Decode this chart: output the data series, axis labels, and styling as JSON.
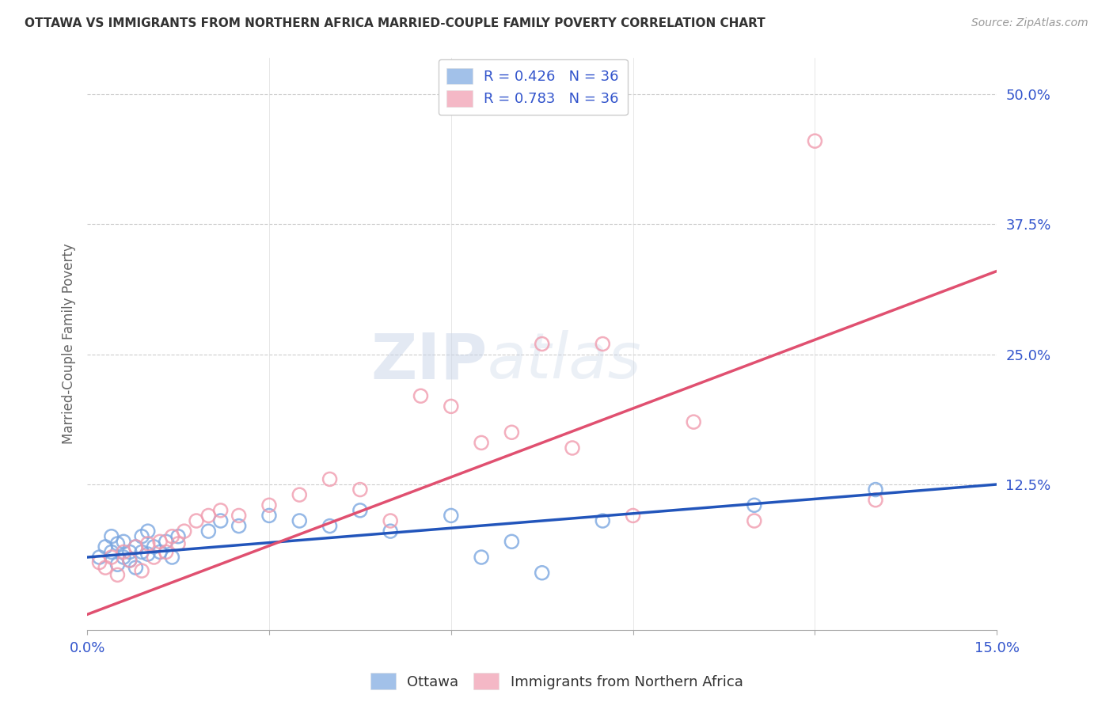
{
  "title": "OTTAWA VS IMMIGRANTS FROM NORTHERN AFRICA MARRIED-COUPLE FAMILY POVERTY CORRELATION CHART",
  "source": "Source: ZipAtlas.com",
  "ylabel": "Married-Couple Family Poverty",
  "ytick_labels": [
    "12.5%",
    "25.0%",
    "37.5%",
    "50.0%"
  ],
  "ytick_values": [
    0.125,
    0.25,
    0.375,
    0.5
  ],
  "xlim": [
    0.0,
    0.15
  ],
  "ylim": [
    -0.015,
    0.535
  ],
  "ottawa_color": "#7ba7e0",
  "immigrants_color": "#f09bae",
  "ottawa_line_color": "#2255bb",
  "immigrants_line_color": "#e05070",
  "R_ottawa": 0.426,
  "N_ottawa": 36,
  "R_immigrants": 0.783,
  "N_immigrants": 36,
  "legend_text_color": "#3355cc",
  "watermark_zip": "ZIP",
  "watermark_atlas": "atlas",
  "background_color": "#ffffff",
  "grid_color": "#cccccc",
  "ottawa_x": [
    0.002,
    0.003,
    0.004,
    0.004,
    0.005,
    0.005,
    0.006,
    0.006,
    0.007,
    0.007,
    0.008,
    0.008,
    0.009,
    0.009,
    0.01,
    0.01,
    0.011,
    0.012,
    0.013,
    0.014,
    0.015,
    0.02,
    0.022,
    0.025,
    0.03,
    0.035,
    0.04,
    0.045,
    0.05,
    0.06,
    0.065,
    0.07,
    0.075,
    0.085,
    0.11,
    0.13
  ],
  "ottawa_y": [
    0.055,
    0.065,
    0.06,
    0.075,
    0.048,
    0.068,
    0.055,
    0.07,
    0.06,
    0.052,
    0.065,
    0.045,
    0.06,
    0.075,
    0.058,
    0.08,
    0.065,
    0.06,
    0.07,
    0.055,
    0.075,
    0.08,
    0.09,
    0.085,
    0.095,
    0.09,
    0.085,
    0.1,
    0.08,
    0.095,
    0.055,
    0.07,
    0.04,
    0.09,
    0.105,
    0.12
  ],
  "immigrants_x": [
    0.002,
    0.003,
    0.004,
    0.005,
    0.006,
    0.007,
    0.008,
    0.009,
    0.01,
    0.011,
    0.012,
    0.013,
    0.014,
    0.015,
    0.016,
    0.018,
    0.02,
    0.022,
    0.025,
    0.03,
    0.035,
    0.04,
    0.045,
    0.05,
    0.055,
    0.06,
    0.065,
    0.07,
    0.075,
    0.08,
    0.085,
    0.09,
    0.1,
    0.11,
    0.12,
    0.13
  ],
  "immigrants_y": [
    0.05,
    0.045,
    0.055,
    0.038,
    0.06,
    0.052,
    0.065,
    0.042,
    0.068,
    0.055,
    0.07,
    0.06,
    0.075,
    0.068,
    0.08,
    0.09,
    0.095,
    0.1,
    0.095,
    0.105,
    0.115,
    0.13,
    0.12,
    0.09,
    0.21,
    0.2,
    0.165,
    0.175,
    0.26,
    0.16,
    0.26,
    0.095,
    0.185,
    0.09,
    0.455,
    0.11
  ]
}
